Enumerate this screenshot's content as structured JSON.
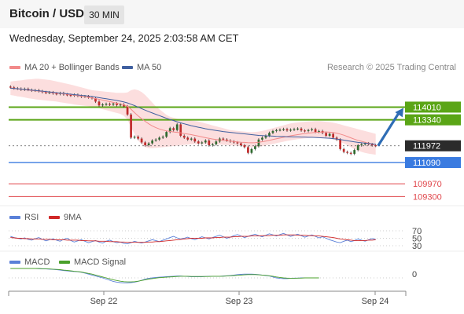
{
  "header": {
    "pair": "Bitcoin / USD",
    "interval": "30 MIN"
  },
  "datetime": "Wednesday, September 24, 2025 2:03:58 AM CET",
  "legend": {
    "ma20": "MA 20 + Bollinger Bands",
    "ma50": "MA 50",
    "copyright": "Research © 2025 Trading Central",
    "rsi": "RSI",
    "rsi_ma": "9MA",
    "macd": "MACD",
    "macd_signal": "MACD Signal"
  },
  "colors": {
    "ma20": "#f28a8a",
    "ma50": "#4060a0",
    "bollinger": "#fbd3d3",
    "bull": "#2f6b2f",
    "bear": "#c02a2a",
    "resistance": "#5aa516",
    "support": "#3a7be0",
    "target": "#e0474c",
    "arrow": "#2f6db5",
    "rsi": "#5a80d8",
    "rsi_ma": "#d02828",
    "macd": "#5a80d8",
    "macd_signal": "#4aa02a"
  },
  "chart_data": [
    {
      "type": "candlestick",
      "title": "Bitcoin / USD",
      "x_ticks": [
        "Sep 22",
        "Sep 23",
        "Sep 24"
      ],
      "y_range": [
        108900,
        115600
      ],
      "levels": [
        {
          "value": 114010,
          "label": "114010",
          "kind": "resistance"
        },
        {
          "value": 113340,
          "label": "113340",
          "kind": "resistance"
        },
        {
          "value": 111972,
          "label": "111972",
          "kind": "last"
        },
        {
          "value": 111090,
          "label": "111090",
          "kind": "support"
        },
        {
          "value": 109970,
          "label": "109970",
          "kind": "target"
        },
        {
          "value": 109300,
          "label": "109300",
          "kind": "target"
        }
      ],
      "close": [
        115050,
        115000,
        114980,
        114930,
        114970,
        114920,
        114880,
        114900,
        114850,
        114800,
        114760,
        114790,
        114730,
        114700,
        114750,
        114680,
        114650,
        114620,
        114660,
        114600,
        114560,
        114580,
        114520,
        114480,
        114300,
        114100,
        114150,
        114180,
        114140,
        114200,
        114120,
        114150,
        114050,
        113620,
        112400,
        112450,
        112350,
        112150,
        112000,
        112100,
        112250,
        112300,
        112400,
        112450,
        112700,
        112900,
        112800,
        113100,
        112500,
        112400,
        112300,
        112350,
        112200,
        112100,
        112150,
        112250,
        112000,
        112050,
        112200,
        112350,
        112300,
        112250,
        112200,
        112150,
        112100,
        112000,
        111900,
        111600,
        111800,
        111950,
        112300,
        112400,
        112500,
        112650,
        112750,
        112800,
        112820,
        112850,
        112780,
        112820,
        112850,
        112880,
        112780,
        112750,
        112800,
        112850,
        112700,
        112750,
        112650,
        112500,
        112600,
        112400,
        112300,
        111800,
        111650,
        111600,
        111550,
        111750,
        112000,
        112050,
        112100,
        112050,
        112000,
        111972
      ],
      "ma20": [
        115000,
        114990,
        114970,
        114950,
        114930,
        114910,
        114890,
        114870,
        114850,
        114830,
        114810,
        114790,
        114770,
        114750,
        114730,
        114710,
        114690,
        114670,
        114640,
        114610,
        114580,
        114550,
        114520,
        114490,
        114460,
        114420,
        114380,
        114340,
        114300,
        114260,
        114220,
        114180,
        114130,
        114050,
        113900,
        113720,
        113550,
        113400,
        113260,
        113130,
        113020,
        112930,
        112860,
        112800,
        112760,
        112730,
        112700,
        112680,
        112650,
        112620,
        112590,
        112560,
        112520,
        112480,
        112440,
        112400,
        112360,
        112330,
        112300,
        112280,
        112260,
        112240,
        112220,
        112200,
        112180,
        112160,
        112150,
        112140,
        112130,
        112140,
        112160,
        112190,
        112220,
        112260,
        112300,
        112340,
        112380,
        112420,
        112460,
        112500,
        112530,
        112560,
        112590,
        112620,
        112640,
        112660,
        112680,
        112690,
        112700,
        112700,
        112690,
        112670,
        112640,
        112590,
        112530,
        112460,
        112390,
        112320,
        112260,
        112210,
        112160,
        112110,
        112070,
        112030
      ],
      "ma50": [
        115010,
        114990,
        114980,
        114960,
        114940,
        114920,
        114900,
        114890,
        114870,
        114850,
        114830,
        114810,
        114790,
        114770,
        114750,
        114730,
        114710,
        114690,
        114670,
        114650,
        114630,
        114610,
        114590,
        114570,
        114540,
        114510,
        114480,
        114450,
        114420,
        114390,
        114360,
        114320,
        114280,
        114230,
        114160,
        114090,
        114010,
        113930,
        113850,
        113770,
        113700,
        113630,
        113560,
        113490,
        113420,
        113360,
        113300,
        113240,
        113180,
        113130,
        113080,
        113030,
        112990,
        112950,
        112910,
        112870,
        112840,
        112810,
        112780,
        112750,
        112720,
        112700,
        112680,
        112660,
        112640,
        112620,
        112600,
        112580,
        112560,
        112540,
        112520,
        112510,
        112500,
        112490,
        112480,
        112470,
        112460,
        112460,
        112450,
        112450,
        112440,
        112440,
        112430,
        112430,
        112420,
        112420,
        112410,
        112400,
        112390,
        112380,
        112370,
        112350,
        112330,
        112300,
        112270,
        112240,
        112210,
        112180,
        112150,
        112130,
        112110,
        112090,
        112070,
        112050
      ],
      "bb_upper": [
        115350,
        115380,
        115400,
        115420,
        115450,
        115470,
        115480,
        115500,
        115500,
        115480,
        115460,
        115440,
        115400,
        115360,
        115320,
        115280,
        115240,
        115200,
        115150,
        115100,
        115050,
        115000,
        114950,
        114900,
        114880,
        114860,
        114840,
        114820,
        114800,
        114780,
        114760,
        114760,
        114760,
        114780,
        114900,
        114950,
        114900,
        114800,
        114650,
        114450,
        114250,
        114050,
        113900,
        113750,
        113600,
        113500,
        113450,
        113400,
        113380,
        113350,
        113320,
        113300,
        113280,
        113250,
        113200,
        113150,
        113100,
        113050,
        113000,
        112950,
        112900,
        112850,
        112800,
        112780,
        112760,
        112740,
        112720,
        112700,
        112690,
        112700,
        112720,
        112760,
        112800,
        112850,
        112900,
        112950,
        113000,
        113050,
        113100,
        113150,
        113180,
        113200,
        113220,
        113240,
        113250,
        113260,
        113270,
        113270,
        113260,
        113240,
        113220,
        113190,
        113150,
        113100,
        113050,
        113000,
        112950,
        112900,
        112850,
        112800,
        112750,
        112700,
        112650,
        112600
      ],
      "bb_lower": [
        114650,
        114620,
        114580,
        114550,
        114520,
        114480,
        114450,
        114420,
        114400,
        114380,
        114360,
        114340,
        114320,
        114300,
        114270,
        114240,
        114210,
        114180,
        114150,
        114120,
        114100,
        114080,
        114060,
        114040,
        114000,
        113950,
        113900,
        113850,
        113800,
        113750,
        113700,
        113650,
        113550,
        113350,
        112950,
        112600,
        112250,
        112050,
        111900,
        111850,
        111850,
        111860,
        111880,
        111900,
        111920,
        111940,
        111960,
        111980,
        112000,
        112020,
        112040,
        112050,
        112060,
        112060,
        112060,
        112060,
        112060,
        112050,
        112040,
        112030,
        112020,
        112010,
        112000,
        111990,
        111980,
        111960,
        111940,
        111920,
        111900,
        111900,
        111920,
        111950,
        111990,
        112030,
        112070,
        112110,
        112150,
        112190,
        112230,
        112260,
        112290,
        112320,
        112340,
        112360,
        112380,
        112390,
        112400,
        112400,
        112390,
        112370,
        112340,
        112300,
        112250,
        112180,
        112100,
        112000,
        111900,
        111800,
        111720,
        111650,
        111600,
        111560,
        111530,
        111500
      ]
    },
    {
      "type": "line",
      "title": "RSI",
      "y_ticks": [
        70,
        50,
        30
      ],
      "series": [
        {
          "name": "RSI",
          "values": [
            55,
            52,
            50,
            48,
            51,
            47,
            45,
            49,
            52,
            47,
            43,
            46,
            48,
            45,
            42,
            47,
            50,
            44,
            40,
            43,
            46,
            42,
            38,
            41,
            44,
            40,
            37,
            42,
            45,
            41,
            38,
            40,
            36,
            35,
            38,
            42,
            39,
            37,
            40,
            43,
            46,
            44,
            41,
            45,
            48,
            52,
            55,
            51,
            48,
            50,
            53,
            49,
            46,
            50,
            54,
            51,
            48,
            52,
            55,
            58,
            54,
            50,
            53,
            57,
            60,
            56,
            52,
            55,
            58,
            61,
            57,
            54,
            58,
            62,
            59,
            56,
            60,
            63,
            59,
            55,
            58,
            61,
            57,
            53,
            56,
            59,
            55,
            51,
            54,
            50,
            46,
            43,
            40,
            38,
            42,
            45,
            41,
            44,
            48,
            45,
            42,
            46,
            49,
            47
          ]
        },
        {
          "name": "9MA",
          "values": [
            52,
            51,
            50,
            50,
            49,
            49,
            48,
            48,
            48,
            47,
            47,
            47,
            46,
            46,
            46,
            46,
            45,
            45,
            45,
            45,
            44,
            44,
            43,
            43,
            43,
            42,
            42,
            42,
            41,
            41,
            41,
            40,
            40,
            39,
            39,
            39,
            39,
            39,
            39,
            40,
            40,
            41,
            41,
            42,
            43,
            44,
            45,
            46,
            47,
            48,
            49,
            50,
            50,
            50,
            50,
            51,
            51,
            51,
            52,
            52,
            53,
            53,
            53,
            54,
            54,
            55,
            55,
            55,
            56,
            56,
            56,
            57,
            57,
            57,
            58,
            58,
            58,
            59,
            59,
            59,
            59,
            58,
            58,
            58,
            57,
            57,
            56,
            56,
            55,
            54,
            53,
            52,
            50,
            48,
            47,
            46,
            45,
            44,
            44,
            44,
            44,
            45,
            45,
            46
          ]
        }
      ]
    },
    {
      "type": "line",
      "title": "MACD",
      "y_ticks": [
        0
      ],
      "series": [
        {
          "name": "MACD",
          "values": [
            40,
            40,
            40,
            40,
            40,
            40,
            40,
            40,
            39,
            38,
            38,
            37,
            36,
            35,
            33,
            31,
            30,
            28,
            27,
            26,
            24,
            20,
            16,
            12,
            8,
            4,
            0,
            -5,
            -10,
            -15,
            -18,
            -20,
            -21,
            -21,
            -20,
            -18,
            -15,
            -10,
            -5,
            -2,
            0,
            2,
            3,
            4,
            5,
            6,
            7,
            8,
            8,
            7,
            6,
            5,
            5,
            5,
            5,
            6,
            7,
            7,
            7,
            7,
            8,
            9,
            10,
            12,
            14,
            15,
            16,
            16,
            16,
            15,
            14,
            12,
            10,
            8,
            4,
            0,
            -2,
            -3,
            -3,
            -2,
            -1,
            -1,
            0,
            0,
            0,
            0,
            0,
            0
          ]
        },
        {
          "name": "MACD Signal",
          "values": [
            40,
            40,
            40,
            40,
            40,
            40,
            40,
            40,
            40,
            39,
            39,
            38,
            37,
            36,
            35,
            33,
            32,
            30,
            28,
            27,
            25,
            22,
            19,
            16,
            12,
            8,
            4,
            0,
            -4,
            -8,
            -11,
            -14,
            -16,
            -17,
            -17,
            -16,
            -14,
            -11,
            -8,
            -5,
            -3,
            -1,
            1,
            2,
            3,
            4,
            5,
            6,
            7,
            7,
            7,
            6,
            6,
            6,
            6,
            6,
            6,
            7,
            7,
            7,
            7,
            8,
            9,
            10,
            11,
            12,
            13,
            14,
            14,
            14,
            13,
            12,
            11,
            9,
            7,
            4,
            2,
            0,
            -1,
            -2,
            -2,
            -1,
            -1,
            0,
            0,
            0,
            0,
            0
          ]
        }
      ]
    }
  ]
}
